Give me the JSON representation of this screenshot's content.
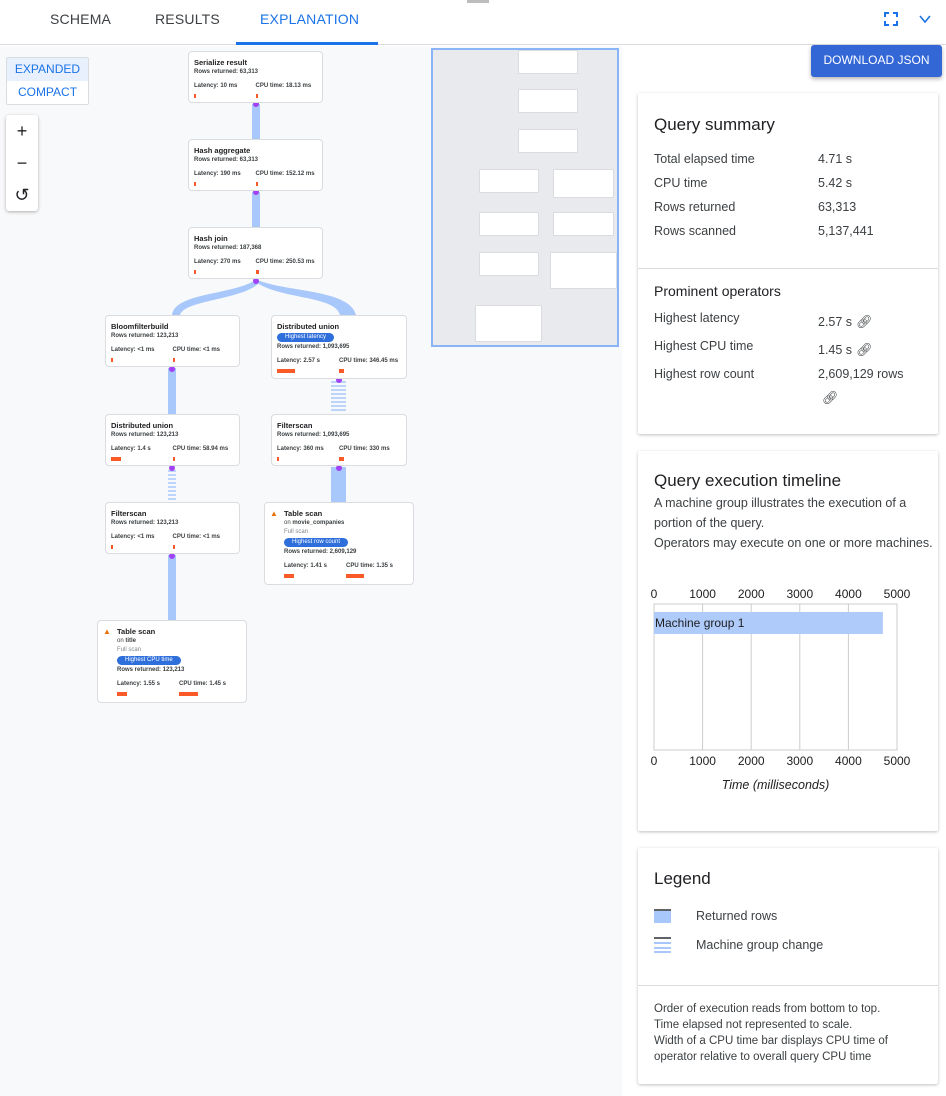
{
  "tabs": [
    {
      "label": "SCHEMA"
    },
    {
      "label": "RESULTS"
    },
    {
      "label": "EXPLANATION",
      "active": true
    }
  ],
  "icons": {
    "fullscreen": "fullscreen-icon",
    "collapse": "chevron-down-icon"
  },
  "view_toggle": {
    "expanded": "EXPANDED",
    "compact": "COMPACT",
    "selected": "EXPANDED"
  },
  "zoom_controls": {
    "zoom_in": "+",
    "zoom_out": "−",
    "reset": "↺"
  },
  "plan_nodes": [
    {
      "title": "Serialize result",
      "rows": "Rows returned: 63,313",
      "latency": "Latency: 10 ms",
      "cpu": "CPU time: 18.13 ms",
      "lat_frac": 0.01,
      "cpu_frac": 0.01
    },
    {
      "title": "Hash aggregate",
      "rows": "Rows returned: 63,313",
      "latency": "Latency: 190 ms",
      "cpu": "CPU time: 152.12 ms",
      "lat_frac": 0.01,
      "cpu_frac": 0.04
    },
    {
      "title": "Hash join",
      "rows": "Rows returned: 187,368",
      "latency": "Latency: 270 ms",
      "cpu": "CPU time: 250.53 ms",
      "lat_frac": 0.02,
      "cpu_frac": 0.06
    },
    {
      "title": "Bloomfilterbuild",
      "rows": "Rows returned: 123,213",
      "latency": "Latency: <1 ms",
      "cpu": "CPU time: <1 ms",
      "lat_frac": 0.01,
      "cpu_frac": 0.01
    },
    {
      "title": "Distributed union",
      "badge": "Highest latency",
      "rows": "Rows returned: 1,093,695",
      "latency": "Latency: 2.57 s",
      "cpu": "CPU time: 346.45 ms",
      "lat_frac": 0.3,
      "cpu_frac": 0.08
    },
    {
      "title": "Distributed union",
      "rows": "Rows returned: 123,213",
      "latency": "Latency: 1.4 s",
      "cpu": "CPU time: 58.94 ms",
      "lat_frac": 0.16,
      "cpu_frac": 0.01
    },
    {
      "title": "Filterscan",
      "rows": "Rows returned: 1,093,695",
      "latency": "Latency: 360 ms",
      "cpu": "CPU time: 330 ms",
      "lat_frac": 0.03,
      "cpu_frac": 0.08
    },
    {
      "title": "Filterscan",
      "rows": "Rows returned: 123,213",
      "latency": "Latency: <1 ms",
      "cpu": "CPU time: <1 ms",
      "lat_frac": 0.01,
      "cpu_frac": 0.01
    },
    {
      "title": "Table scan",
      "on": "on ",
      "table": "movie_companies",
      "scan": "Full scan",
      "badge": "Highest row count",
      "rows": "Rows returned: 2,609,129",
      "latency": "Latency: 1.41 s",
      "cpu": "CPU time: 1.35 s",
      "lat_frac": 0.16,
      "cpu_frac": 0.3,
      "warning": true
    },
    {
      "title": "Table scan",
      "on": "on ",
      "table": "title",
      "scan": "Full scan",
      "badge": "Highest CPU time",
      "rows": "Rows returned: 123,213",
      "latency": "Latency: 1.55 s",
      "cpu": "CPU time: 1.45 s",
      "lat_frac": 0.17,
      "cpu_frac": 0.32,
      "warning": true
    }
  ],
  "download_label": "DOWNLOAD JSON",
  "query_summary": {
    "title": "Query summary",
    "rows": [
      {
        "label": "Total elapsed time",
        "value": "4.71 s"
      },
      {
        "label": "CPU time",
        "value": "5.42 s"
      },
      {
        "label": "Rows returned",
        "value": "63,313"
      },
      {
        "label": "Rows scanned",
        "value": "5,137,441"
      }
    ]
  },
  "prominent": {
    "title": "Prominent operators",
    "rows": [
      {
        "label": "Highest latency",
        "value": "2.57 s"
      },
      {
        "label": "Highest CPU time",
        "value": "1.45 s"
      },
      {
        "label": "Highest row count",
        "value": "2,609,129 rows"
      }
    ]
  },
  "timeline": {
    "title": "Query execution timeline",
    "desc1": "A machine group illustrates the execution of a portion of the query.",
    "desc2": "Operators may execute on one or more machines."
  },
  "chart_data": {
    "type": "bar",
    "orientation": "horizontal",
    "categories": [
      "Machine group 1"
    ],
    "values": [
      4710
    ],
    "xlabel": "Time (milliseconds)",
    "xlim": [
      0,
      5000
    ],
    "ticks": [
      "0",
      "1000",
      "2000",
      "3000",
      "4000",
      "5000"
    ],
    "grid": true,
    "color": "#aecbfa"
  },
  "legend": {
    "title": "Legend",
    "items": [
      {
        "label": "Returned rows"
      },
      {
        "label": "Machine group change"
      }
    ],
    "notes": [
      "Order of execution reads from bottom to top.",
      "Time elapsed not represented to scale.",
      "Width of a CPU time bar displays CPU time of operator relative to overall query CPU time"
    ]
  },
  "colors": {
    "accent": "#1a73e8",
    "bar": "#fa5a28",
    "flow": "#a8c7fa",
    "connector": "#a142f4"
  }
}
